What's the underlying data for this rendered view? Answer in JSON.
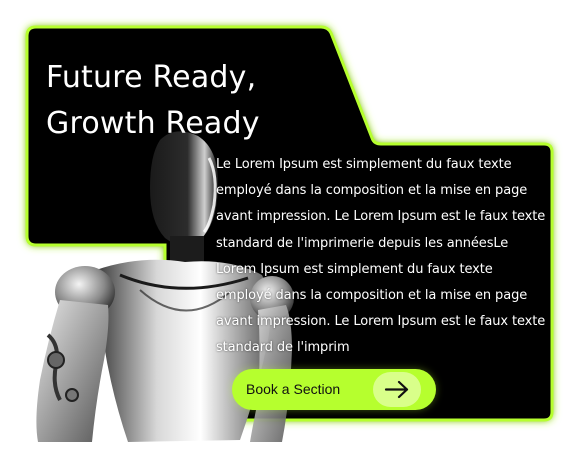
{
  "hero": {
    "title_line1": "Future Ready,",
    "title_line2": "Growth Ready",
    "body": "Le Lorem Ipsum est simplement du faux texte employé dans la composition et la mise en page avant impression. Le Lorem Ipsum est le faux texte standard de l'imprimerie depuis les annéesLe Lorem Ipsum est simplement du faux texte employé dans la composition et la mise en page avant impression. Le Lorem Ipsum est le faux texte standard de l'imprim",
    "cta_label": "Book a Section",
    "cta_icon": "arrow-right-icon",
    "image": "humanoid-robot-image"
  },
  "colors": {
    "card_background": "#000000",
    "accent_glow": "#b6ff2e",
    "button": "#b6ff2e",
    "button_icon_bg": "#d9ff8a",
    "text": "#ffffff"
  }
}
